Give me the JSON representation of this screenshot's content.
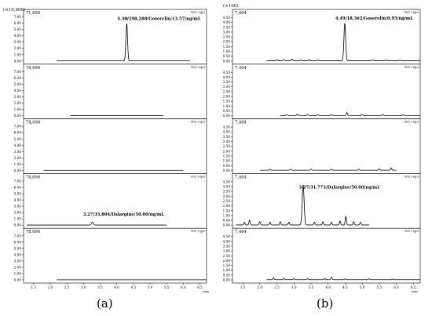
{
  "chart_data": [
    {
      "type": "line",
      "label": "(a)",
      "scale_factor": "(×10,000)",
      "x_unit": "min",
      "x_ticks": [
        "1.5",
        "2.0",
        "2.5",
        "3.0",
        "3.5",
        "4.0",
        "4.5",
        "5.0",
        "5.5",
        "6.0",
        "6.5"
      ],
      "x_range": [
        1.2,
        6.7
      ],
      "traces": [
        {
          "count_label": "71,696",
          "tic_label": "TIC(+)@3",
          "y_ticks": [
            "0.00",
            "1.00",
            "2.00",
            "3.00",
            "4.00",
            "5.00",
            "6.00",
            "7.00"
          ],
          "ylim": [
            0,
            7.2
          ],
          "line_range": [
            2.2,
            6.2
          ],
          "peaks": [
            {
              "x": 4.3,
              "height": 5.95,
              "width": 0.035
            }
          ],
          "annotation": "4.30/298,288/Goserelin/13.57/ng/mL",
          "annotation_x": 4.3,
          "annotation_y": 6.5,
          "marker_x": 4.3
        },
        {
          "count_label": "78,696",
          "tic_label": "TIC(+)@3",
          "y_ticks": [
            "0.00",
            "1.00",
            "2.00",
            "3.00",
            "4.00",
            "5.00",
            "6.00",
            "7.00"
          ],
          "ylim": [
            0,
            7.2
          ],
          "line_range": [
            2.6,
            5.4
          ],
          "peaks": []
        },
        {
          "count_label": "78,696",
          "tic_label": "TIC(+)@3",
          "y_ticks": [
            "0.00",
            "1.00",
            "2.00",
            "3.00",
            "4.00",
            "5.00",
            "6.00",
            "7.00"
          ],
          "ylim": [
            0,
            7.2
          ],
          "line_range": [
            1.8,
            6.0
          ],
          "peaks": []
        },
        {
          "count_label": "78,696",
          "tic_label": "TIC(+)@3",
          "y_ticks": [
            "0.00",
            "1.00",
            "2.00",
            "3.00",
            "4.00",
            "5.00",
            "6.00",
            "7.00"
          ],
          "ylim": [
            0,
            7.2
          ],
          "line_range": [
            1.3,
            5.5
          ],
          "peaks": [
            {
              "x": 3.27,
              "height": 0.45,
              "width": 0.04
            }
          ],
          "annotation": "3.27/35,804/Dalargine/50.00/ng/mL",
          "annotation_x": 3.27,
          "annotation_y": 1.5
        },
        {
          "count_label": "78,696",
          "tic_label": "TIC(+)@3",
          "y_ticks": [
            "0.00",
            "1.00",
            "2.00",
            "3.00",
            "4.00",
            "5.00",
            "6.00",
            "7.00"
          ],
          "ylim": [
            0,
            7.2
          ],
          "line_range": [
            2.2,
            6.7
          ],
          "peaks": []
        }
      ]
    },
    {
      "type": "line",
      "label": "(b)",
      "scale_factor": "(×100)",
      "x_unit": "min",
      "x_ticks": [
        "1.5",
        "2.0",
        "2.5",
        "3.0",
        "3.5",
        "4.0",
        "4.5",
        "5.0",
        "5.5",
        "6.0",
        "6.5"
      ],
      "x_range": [
        1.2,
        6.7
      ],
      "traces": [
        {
          "count_label": "7,464",
          "tic_label": "TIC(+)@3",
          "y_ticks": [
            "0.00",
            "0.50",
            "1.00",
            "1.50",
            "2.00",
            "2.50",
            "3.00",
            "3.50",
            "4.00",
            "4.50"
          ],
          "ylim": [
            0,
            4.7
          ],
          "line_range": [
            2.2,
            6.7
          ],
          "peaks": [
            {
              "x": 4.49,
              "height": 3.9,
              "width": 0.035
            }
          ],
          "noise": [
            {
              "x": 2.5,
              "h": 0.12
            },
            {
              "x": 2.7,
              "h": 0.15
            },
            {
              "x": 2.95,
              "h": 0.2
            },
            {
              "x": 3.2,
              "h": 0.1
            },
            {
              "x": 3.45,
              "h": 0.12
            },
            {
              "x": 3.7,
              "h": 0.1
            },
            {
              "x": 5.3,
              "h": 0.12
            },
            {
              "x": 5.7,
              "h": 0.1
            },
            {
              "x": 6.1,
              "h": 0.08
            }
          ],
          "annotation": "4.49/18,362/Goserelin/0.95/ng/mL",
          "annotation_x": 4.49,
          "annotation_y": 4.3
        },
        {
          "count_label": "7,464",
          "tic_label": "TIC(+)@3",
          "y_ticks": [
            "0.00",
            "0.50",
            "1.00",
            "1.50",
            "2.00",
            "2.50",
            "3.00",
            "3.50",
            "4.00",
            "4.50"
          ],
          "ylim": [
            0,
            4.7
          ],
          "line_range": [
            2.6,
            6.7
          ],
          "peaks": [],
          "noise": [
            {
              "x": 2.8,
              "h": 0.1
            },
            {
              "x": 3.1,
              "h": 0.15
            },
            {
              "x": 3.4,
              "h": 0.12
            },
            {
              "x": 3.7,
              "h": 0.1
            },
            {
              "x": 4.1,
              "h": 0.1
            },
            {
              "x": 4.55,
              "h": 0.3
            },
            {
              "x": 5.0,
              "h": 0.12
            },
            {
              "x": 5.6,
              "h": 0.1
            },
            {
              "x": 6.2,
              "h": 0.08
            }
          ]
        },
        {
          "count_label": "7,464",
          "tic_label": "TIC(+)@3",
          "y_ticks": [
            "0.00",
            "0.50",
            "1.00",
            "1.50",
            "2.00",
            "2.50",
            "3.00",
            "3.50",
            "4.00",
            "4.50"
          ],
          "ylim": [
            0,
            4.7
          ],
          "line_range": [
            2.0,
            6.0
          ],
          "peaks": [],
          "noise": [
            {
              "x": 2.3,
              "h": 0.08
            },
            {
              "x": 2.9,
              "h": 0.1
            },
            {
              "x": 3.5,
              "h": 0.12
            },
            {
              "x": 4.1,
              "h": 0.1
            },
            {
              "x": 4.9,
              "h": 0.12
            },
            {
              "x": 5.5,
              "h": 0.15
            },
            {
              "x": 5.85,
              "h": 0.25
            }
          ]
        },
        {
          "count_label": "7,464",
          "tic_label": "TIC(+)@3",
          "y_ticks": [
            "0.00",
            "0.50",
            "1.00",
            "1.50",
            "2.00",
            "2.50",
            "3.00",
            "3.50",
            "4.00",
            "4.50"
          ],
          "ylim": [
            0,
            4.7
          ],
          "line_range": [
            1.3,
            5.2
          ],
          "peaks": [
            {
              "x": 3.27,
              "height": 4.15,
              "width": 0.04
            }
          ],
          "noise": [
            {
              "x": 1.55,
              "h": 0.3
            },
            {
              "x": 1.7,
              "h": 0.5
            },
            {
              "x": 2.0,
              "h": 0.35
            },
            {
              "x": 2.3,
              "h": 0.3
            },
            {
              "x": 2.6,
              "h": 0.35
            },
            {
              "x": 2.85,
              "h": 0.3
            },
            {
              "x": 3.6,
              "h": 0.3
            },
            {
              "x": 3.85,
              "h": 0.35
            },
            {
              "x": 4.1,
              "h": 0.3
            },
            {
              "x": 4.35,
              "h": 0.4
            },
            {
              "x": 4.52,
              "h": 0.9
            },
            {
              "x": 4.75,
              "h": 0.35
            },
            {
              "x": 4.95,
              "h": 0.3
            }
          ],
          "annotation": "3.27/31,773/Dalargine/50.00/ng/mL",
          "annotation_x": 3.42,
          "annotation_y": 3.8
        },
        {
          "count_label": "7,464",
          "tic_label": "TIC(+)@3",
          "y_ticks": [
            "0.00",
            "0.50",
            "1.00",
            "1.50",
            "2.00",
            "2.50",
            "3.00",
            "3.50",
            "4.00",
            "4.50"
          ],
          "ylim": [
            0,
            4.7
          ],
          "line_range": [
            2.2,
            6.7
          ],
          "peaks": [],
          "noise": [
            {
              "x": 2.4,
              "h": 0.2
            },
            {
              "x": 2.7,
              "h": 0.15
            },
            {
              "x": 3.0,
              "h": 0.1
            },
            {
              "x": 3.4,
              "h": 0.12
            },
            {
              "x": 3.9,
              "h": 0.15
            },
            {
              "x": 4.1,
              "h": 0.25
            },
            {
              "x": 4.5,
              "h": 0.1
            },
            {
              "x": 5.2,
              "h": 0.1
            },
            {
              "x": 5.9,
              "h": 0.08
            }
          ]
        }
      ]
    }
  ]
}
